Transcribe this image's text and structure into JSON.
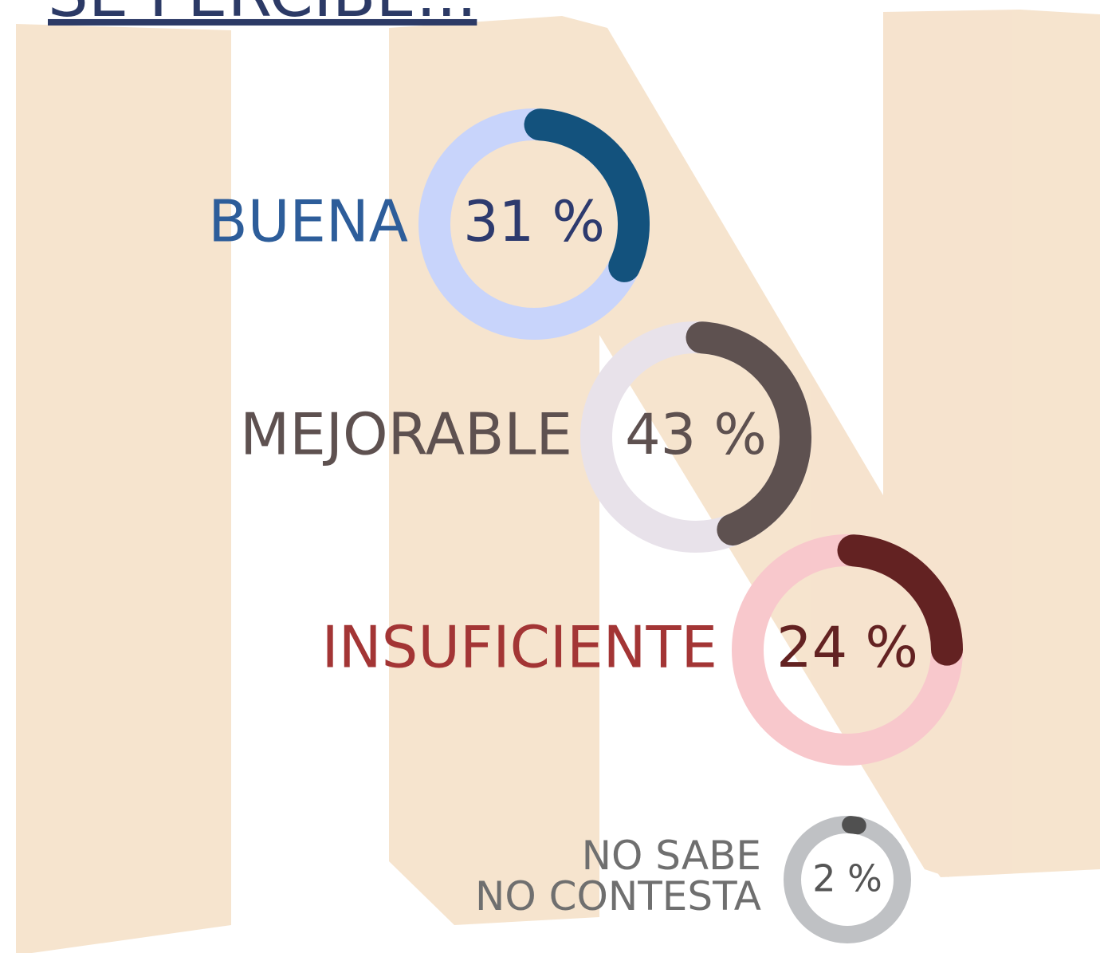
{
  "title": "SE PERCIBE...",
  "chart_data": [
    {
      "type": "donut",
      "label": [
        "BUENA"
      ],
      "values": [
        31
      ],
      "value_labels": [
        "31 %"
      ],
      "color": "#13527d",
      "track_color": "#c8d4fb",
      "label_color": "#2d5d9a",
      "value_color": "#2d3a6e"
    },
    {
      "type": "donut",
      "label": [
        "MEJORABLE"
      ],
      "values": [
        43
      ],
      "value_labels": [
        "43 %"
      ],
      "color": "#5e5150",
      "track_color": "#e8e2ea",
      "label_color": "#5e5150",
      "value_color": "#5e5150"
    },
    {
      "type": "donut",
      "label": [
        "INSUFICIENTE"
      ],
      "values": [
        24
      ],
      "value_labels": [
        "24 %"
      ],
      "color": "#632222",
      "track_color": "#f8c8cc",
      "label_color": "#a33535",
      "value_color": "#632222"
    },
    {
      "type": "donut",
      "label": [
        "NO SABE",
        "NO CONTESTA"
      ],
      "values": [
        2
      ],
      "value_labels": [
        "2 %"
      ],
      "color": "#505050",
      "track_color": "#bfc1c4",
      "label_color": "#6f6f6f",
      "value_color": "#555555"
    }
  ]
}
